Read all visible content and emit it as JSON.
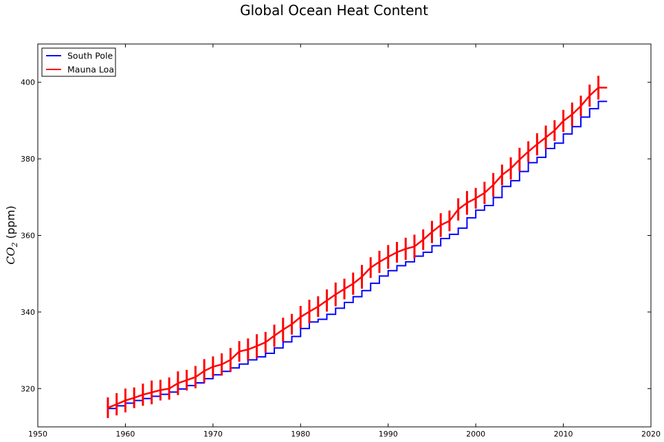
{
  "chart_data": {
    "type": "line",
    "title": "Global Ocean Heat Content",
    "xlabel": "",
    "ylabel": "CO2 (ppm)",
    "ylabel_main": "CO",
    "ylabel_sub": "2",
    "ylabel_unit": " (ppm)",
    "xlim": [
      1950,
      2020
    ],
    "ylim": [
      310,
      410
    ],
    "xticks": [
      1950,
      1960,
      1970,
      1980,
      1990,
      2000,
      2010,
      2020
    ],
    "yticks": [
      320,
      340,
      360,
      380,
      400
    ],
    "grid": false,
    "legend_position": "top-left",
    "series": [
      {
        "name": "South Pole",
        "color": "#0000ff",
        "style": "annual-steps",
        "x": [
          1958,
          1959,
          1960,
          1961,
          1962,
          1963,
          1964,
          1965,
          1966,
          1967,
          1968,
          1969,
          1970,
          1971,
          1972,
          1973,
          1974,
          1975,
          1976,
          1977,
          1978,
          1979,
          1980,
          1981,
          1982,
          1983,
          1984,
          1985,
          1986,
          1987,
          1988,
          1989,
          1990,
          1991,
          1992,
          1993,
          1994,
          1995,
          1996,
          1997,
          1998,
          1999,
          2000,
          2001,
          2002,
          2003,
          2004,
          2005,
          2006,
          2007,
          2008,
          2009,
          2010,
          2011,
          2012,
          2013,
          2014
        ],
        "values": [
          314.8,
          315.5,
          316.2,
          316.9,
          317.4,
          318.0,
          318.5,
          319.1,
          319.9,
          320.8,
          321.5,
          322.6,
          323.6,
          324.5,
          325.4,
          326.4,
          327.5,
          328.3,
          329.2,
          330.6,
          332.2,
          333.6,
          335.7,
          337.4,
          338.1,
          339.4,
          341.0,
          342.5,
          344.0,
          345.6,
          347.5,
          349.4,
          350.8,
          352.1,
          353.1,
          354.6,
          355.6,
          357.3,
          359.2,
          360.3,
          361.9,
          364.6,
          366.6,
          367.8,
          369.9,
          372.8,
          374.3,
          376.7,
          379.0,
          380.4,
          382.7,
          384.1,
          386.5,
          388.4,
          390.9,
          393.1,
          395.0
        ]
      },
      {
        "name": "Mauna Loa",
        "color": "#ff0000",
        "style": "seasonal",
        "x": [
          1958,
          1959,
          1960,
          1961,
          1962,
          1963,
          1964,
          1965,
          1966,
          1967,
          1968,
          1969,
          1970,
          1971,
          1972,
          1973,
          1974,
          1975,
          1976,
          1977,
          1978,
          1979,
          1980,
          1981,
          1982,
          1983,
          1984,
          1985,
          1986,
          1987,
          1988,
          1989,
          1990,
          1991,
          1992,
          1993,
          1994,
          1995,
          1996,
          1997,
          1998,
          1999,
          2000,
          2001,
          2002,
          2003,
          2004,
          2005,
          2006,
          2007,
          2008,
          2009,
          2010,
          2011,
          2012,
          2013,
          2014
        ],
        "values": [
          315.0,
          315.9,
          316.9,
          317.6,
          318.4,
          319.0,
          319.6,
          320.0,
          321.4,
          322.2,
          323.0,
          324.6,
          325.7,
          326.3,
          327.5,
          329.7,
          330.2,
          331.1,
          332.1,
          333.8,
          335.4,
          336.8,
          338.7,
          340.1,
          341.4,
          343.0,
          344.6,
          346.0,
          347.4,
          349.2,
          351.6,
          353.1,
          354.4,
          355.6,
          356.5,
          357.1,
          358.9,
          360.9,
          362.7,
          363.8,
          366.8,
          368.5,
          369.7,
          371.1,
          373.2,
          375.8,
          377.5,
          379.8,
          381.9,
          383.8,
          385.6,
          387.4,
          389.9,
          391.6,
          393.8,
          396.5,
          398.6
        ]
      }
    ]
  }
}
